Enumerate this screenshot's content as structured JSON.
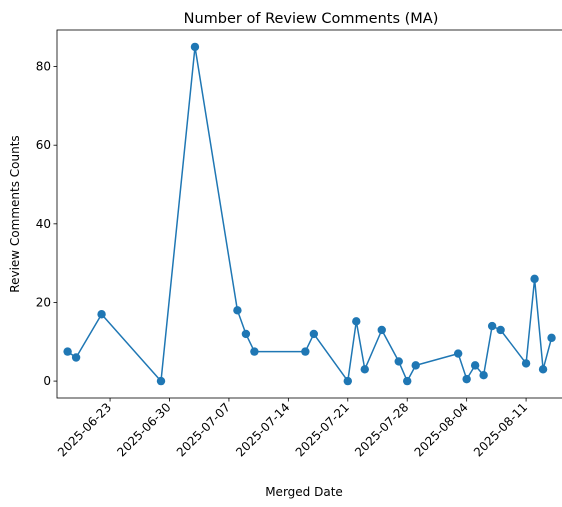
{
  "chart_data": {
    "type": "line",
    "title": "Number of Review Comments (MA)",
    "xlabel": "Merged Date",
    "ylabel": "Review Comments Counts",
    "x_ticks": [
      "2025-06-23",
      "2025-06-30",
      "2025-07-07",
      "2025-07-14",
      "2025-07-21",
      "2025-07-28",
      "2025-08-04",
      "2025-08-11"
    ],
    "y_ticks": [
      0,
      20,
      40,
      60,
      80
    ],
    "xlim": [
      "2025-06-16T18:00",
      "2025-08-15T14:00"
    ],
    "ylim": [
      -4.3,
      89.3
    ],
    "grid": false,
    "legend": "none",
    "color": "#1f77b4",
    "series": [
      {
        "points": [
          {
            "x": "2025-06-18",
            "y": 7.5
          },
          {
            "x": "2025-06-19",
            "y": 6
          },
          {
            "x": "2025-06-22",
            "y": 17
          },
          {
            "x": "2025-06-29",
            "y": 0
          },
          {
            "x": "2025-07-03",
            "y": 85
          },
          {
            "x": "2025-07-08",
            "y": 18
          },
          {
            "x": "2025-07-09",
            "y": 12
          },
          {
            "x": "2025-07-10",
            "y": 7.5
          },
          {
            "x": "2025-07-16",
            "y": 7.5
          },
          {
            "x": "2025-07-17",
            "y": 12
          },
          {
            "x": "2025-07-21",
            "y": 0
          },
          {
            "x": "2025-07-22",
            "y": 15.2
          },
          {
            "x": "2025-07-23",
            "y": 3
          },
          {
            "x": "2025-07-25",
            "y": 13
          },
          {
            "x": "2025-07-27",
            "y": 5
          },
          {
            "x": "2025-07-28",
            "y": 0
          },
          {
            "x": "2025-07-29",
            "y": 4
          },
          {
            "x": "2025-08-03",
            "y": 7
          },
          {
            "x": "2025-08-04",
            "y": 0.5
          },
          {
            "x": "2025-08-05",
            "y": 4
          },
          {
            "x": "2025-08-06",
            "y": 1.5
          },
          {
            "x": "2025-08-07",
            "y": 14
          },
          {
            "x": "2025-08-08",
            "y": 13
          },
          {
            "x": "2025-08-11",
            "y": 4.5
          },
          {
            "x": "2025-08-12",
            "y": 26
          },
          {
            "x": "2025-08-13",
            "y": 3
          },
          {
            "x": "2025-08-14",
            "y": 11
          }
        ]
      }
    ]
  }
}
